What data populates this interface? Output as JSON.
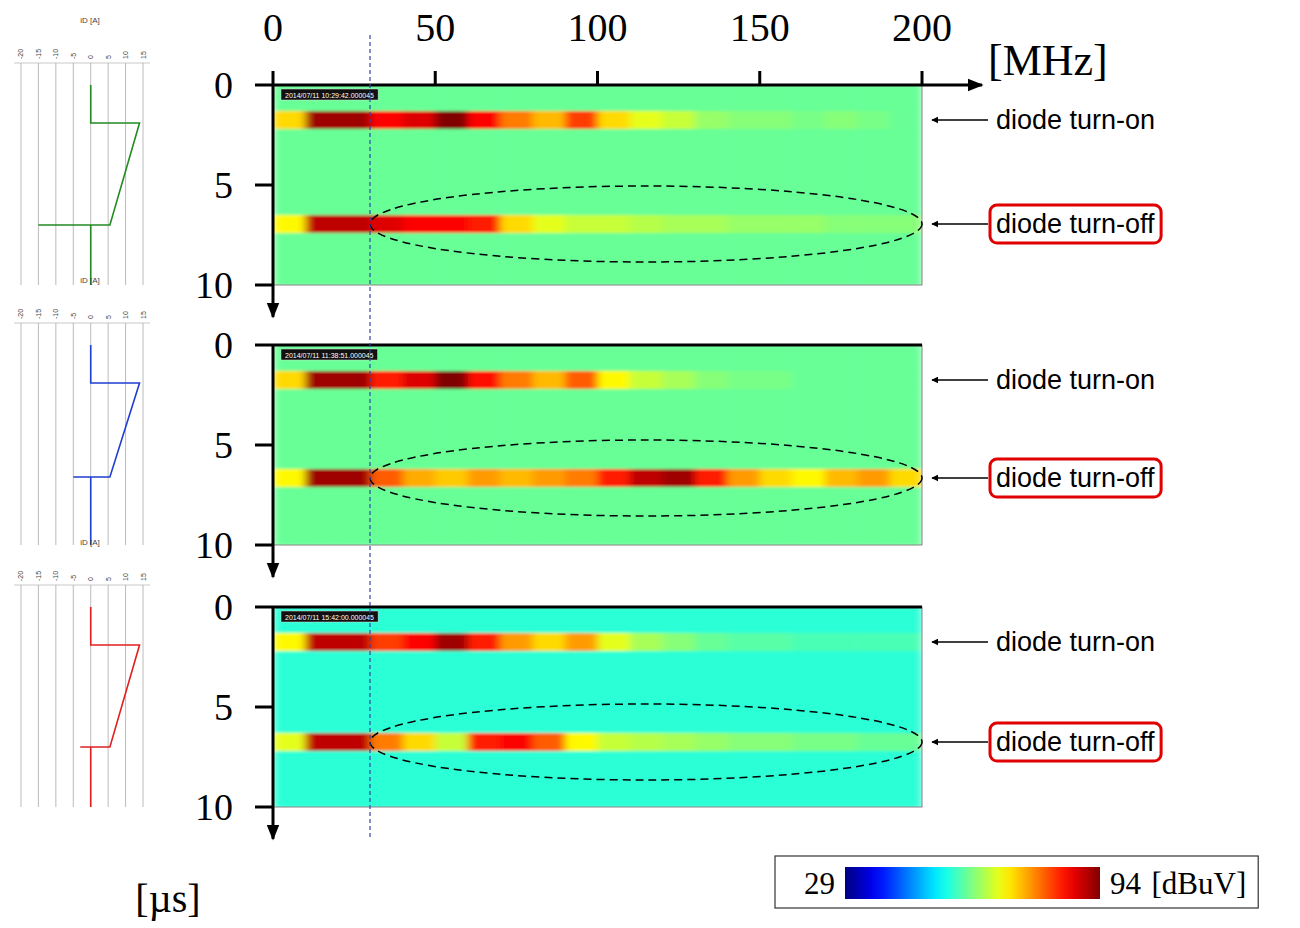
{
  "chart_data": [
    {
      "type": "heatmap",
      "x_label": "[MHz]",
      "timestamp": "2014/07/11 10:29:42.000045",
      "xlim": [
        0,
        200
      ],
      "xticks": [
        0,
        50,
        100,
        150,
        200
      ],
      "ylim": [
        0,
        10
      ],
      "yticks": [
        0,
        5,
        10
      ],
      "tick_labels": true,
      "annotations": [
        "diode turn-on",
        "diode turn-off"
      ],
      "x_bins": [
        0,
        10,
        20,
        30,
        40,
        50,
        60,
        70,
        80,
        90,
        100,
        110,
        120,
        130,
        140,
        150,
        160,
        170,
        180,
        190,
        200
      ],
      "y_bins": [
        0,
        1.3,
        2.2,
        6.5,
        7.4,
        10
      ],
      "cells": [
        [
          60,
          60,
          60,
          60,
          60,
          60,
          60,
          60,
          60,
          60,
          60,
          60,
          60,
          60,
          60,
          60,
          60,
          60,
          60,
          60
        ],
        [
          72,
          92,
          92,
          86,
          88,
          94,
          86,
          78,
          74,
          82,
          72,
          68,
          66,
          63,
          62,
          62,
          61,
          62,
          61,
          60
        ],
        [
          60,
          60,
          60,
          60,
          60,
          60,
          60,
          60,
          60,
          60,
          60,
          60,
          60,
          60,
          60,
          60,
          60,
          60,
          60,
          60
        ],
        [
          70,
          90,
          90,
          88,
          86,
          86,
          84,
          72,
          68,
          66,
          66,
          65,
          64,
          64,
          63,
          63,
          63,
          62,
          62,
          62
        ],
        [
          60,
          60,
          60,
          60,
          60,
          60,
          60,
          60,
          60,
          60,
          60,
          60,
          60,
          60,
          60,
          60,
          60,
          60,
          60,
          60
        ]
      ]
    },
    {
      "type": "heatmap",
      "timestamp": "2014/07/11 11:38:51.000045",
      "xlim": [
        0,
        200
      ],
      "ylim": [
        0,
        10
      ],
      "yticks": [
        0,
        5,
        10
      ],
      "tick_labels": "y",
      "annotations": [
        "diode turn-on",
        "diode turn-off"
      ],
      "x_bins": [
        0,
        10,
        20,
        30,
        40,
        50,
        60,
        70,
        80,
        90,
        100,
        110,
        120,
        130,
        140,
        150,
        160,
        170,
        180,
        190,
        200
      ],
      "y_bins": [
        0,
        1.3,
        2.2,
        6.2,
        7.1,
        10
      ],
      "cells": [
        [
          60,
          60,
          60,
          60,
          60,
          60,
          60,
          60,
          60,
          60,
          60,
          60,
          60,
          60,
          60,
          60,
          60,
          60,
          60,
          60
        ],
        [
          72,
          92,
          92,
          84,
          88,
          94,
          85,
          78,
          74,
          80,
          70,
          66,
          64,
          62,
          61,
          61,
          60,
          60,
          60,
          60
        ],
        [
          60,
          60,
          60,
          60,
          60,
          60,
          60,
          60,
          60,
          60,
          60,
          60,
          60,
          60,
          60,
          60,
          60,
          60,
          60,
          60
        ],
        [
          70,
          92,
          92,
          80,
          75,
          73,
          76,
          74,
          76,
          78,
          84,
          90,
          92,
          84,
          76,
          72,
          70,
          74,
          76,
          72
        ],
        [
          60,
          60,
          60,
          60,
          60,
          60,
          60,
          60,
          60,
          60,
          60,
          60,
          60,
          60,
          60,
          60,
          60,
          60,
          60,
          60
        ]
      ]
    },
    {
      "type": "heatmap",
      "y_label": "[µs]",
      "timestamp": "2014/07/11 15:42:00.000045",
      "xlim": [
        0,
        200
      ],
      "ylim": [
        0,
        10
      ],
      "yticks": [
        0,
        5,
        10
      ],
      "tick_labels": "y",
      "annotations": [
        "diode turn-on",
        "diode turn-off"
      ],
      "x_bins": [
        0,
        10,
        20,
        30,
        40,
        50,
        60,
        70,
        80,
        90,
        100,
        110,
        120,
        130,
        140,
        150,
        160,
        170,
        180,
        190,
        200
      ],
      "y_bins": [
        0,
        1.3,
        2.2,
        6.3,
        7.2,
        10
      ],
      "cells": [
        [
          56,
          56,
          56,
          56,
          56,
          56,
          56,
          56,
          56,
          56,
          56,
          56,
          56,
          56,
          56,
          56,
          56,
          56,
          56,
          56
        ],
        [
          70,
          90,
          90,
          82,
          86,
          92,
          84,
          76,
          72,
          76,
          68,
          64,
          62,
          60,
          59,
          59,
          58,
          58,
          58,
          58
        ],
        [
          56,
          56,
          56,
          56,
          56,
          56,
          56,
          56,
          56,
          56,
          56,
          56,
          56,
          56,
          56,
          56,
          56,
          56,
          56,
          56
        ],
        [
          68,
          90,
          90,
          78,
          72,
          66,
          84,
          86,
          80,
          70,
          66,
          65,
          64,
          63,
          62,
          62,
          61,
          61,
          60,
          60
        ],
        [
          56,
          56,
          56,
          56,
          56,
          56,
          56,
          56,
          56,
          56,
          56,
          56,
          56,
          56,
          56,
          56,
          56,
          56,
          56,
          56
        ]
      ],
      "colorbar": {
        "range": [
          29,
          94
        ],
        "ticks": [
          29,
          94
        ],
        "label": "[dBuV]"
      }
    },
    {
      "type": "line",
      "y_label": "iD [A]",
      "xlim": [
        0,
        10
      ],
      "ylim": [
        -22,
        17
      ],
      "yticks": [
        -20,
        -15,
        -10,
        -5,
        0,
        5,
        10,
        15
      ],
      "grid": true,
      "tick_labels": "y",
      "x": [
        0,
        1.9,
        1.9,
        7.0,
        7.0,
        7.0,
        10
      ],
      "series": [
        {
          "color": "#228b22",
          "values": [
            0,
            0,
            14,
            5.5,
            -15,
            0,
            0
          ]
        }
      ]
    },
    {
      "type": "line",
      "y_label": "iD [A]",
      "xlim": [
        0,
        10
      ],
      "ylim": [
        -22,
        17
      ],
      "yticks": [
        -20,
        -15,
        -10,
        -5,
        0,
        5,
        10,
        15
      ],
      "grid": true,
      "tick_labels": "y",
      "x": [
        0,
        1.9,
        1.9,
        6.6,
        6.6,
        6.6,
        10
      ],
      "series": [
        {
          "color": "#1f3fd0",
          "values": [
            0,
            0,
            14,
            5.5,
            -5,
            0,
            0
          ]
        }
      ]
    },
    {
      "type": "line",
      "y_label": "iD [A]",
      "xlim": [
        0,
        10
      ],
      "ylim": [
        -22,
        17
      ],
      "yticks": [
        -20,
        -15,
        -10,
        -5,
        0,
        5,
        10,
        15
      ],
      "grid": true,
      "tick_labels": "y",
      "x": [
        0,
        1.9,
        1.9,
        7.0,
        7.0,
        7.0,
        10
      ],
      "series": [
        {
          "color": "#e02020",
          "values": [
            0,
            0,
            14,
            5.5,
            -3,
            0,
            0
          ]
        }
      ]
    }
  ]
}
